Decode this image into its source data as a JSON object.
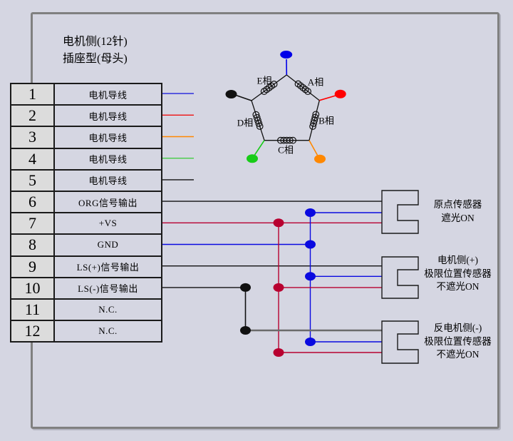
{
  "header": {
    "title_line1": "电机侧(12针)",
    "title_line2": "插座型(母头)"
  },
  "pin_table": {
    "rows": [
      {
        "pin": "1",
        "label": "电机导线",
        "wire_color": "#2222dd"
      },
      {
        "pin": "2",
        "label": "电机导线",
        "wire_color": "#ee1111"
      },
      {
        "pin": "3",
        "label": "电机导线",
        "wire_color": "#ff8800"
      },
      {
        "pin": "4",
        "label": "电机导线",
        "wire_color": "#44cc44"
      },
      {
        "pin": "5",
        "label": "电机导线",
        "wire_color": "#111111"
      },
      {
        "pin": "6",
        "label": "ORG信号输出",
        "wire_color": "#111111"
      },
      {
        "pin": "7",
        "label": "+VS",
        "wire_color": "#b80030"
      },
      {
        "pin": "8",
        "label": "GND",
        "wire_color": "#0a0ae0"
      },
      {
        "pin": "9",
        "label": "LS(+)信号输出",
        "wire_color": "#111111"
      },
      {
        "pin": "10",
        "label": "LS(-)信号输出",
        "wire_color": "#111111"
      },
      {
        "pin": "11",
        "label": "N.C.",
        "wire_color": ""
      },
      {
        "pin": "12",
        "label": "N.C.",
        "wire_color": ""
      }
    ]
  },
  "pentagon": {
    "phases": [
      {
        "label": "A相"
      },
      {
        "label": "B相"
      },
      {
        "label": "C相"
      },
      {
        "label": "D相"
      },
      {
        "label": "E相"
      }
    ],
    "terminal_colors": {
      "top": "#0000e8",
      "right": "#ff0000",
      "bottom_right": "#ff8800",
      "bottom_left": "#18cc18",
      "left": "#111111"
    }
  },
  "wiring": {
    "signal_black": "#111111",
    "power_red": "#b80030",
    "ground_blue": "#0a0ae0",
    "limit_gray": "#6b6b6b"
  },
  "sensors": [
    {
      "lines": [
        "原点传感器",
        "遮光ON"
      ]
    },
    {
      "lines": [
        "电机侧(+)",
        "极限位置传感器",
        "不遮光ON"
      ]
    },
    {
      "lines": [
        "反电机侧(-)",
        "极限位置传感器",
        "不遮光ON"
      ]
    }
  ]
}
